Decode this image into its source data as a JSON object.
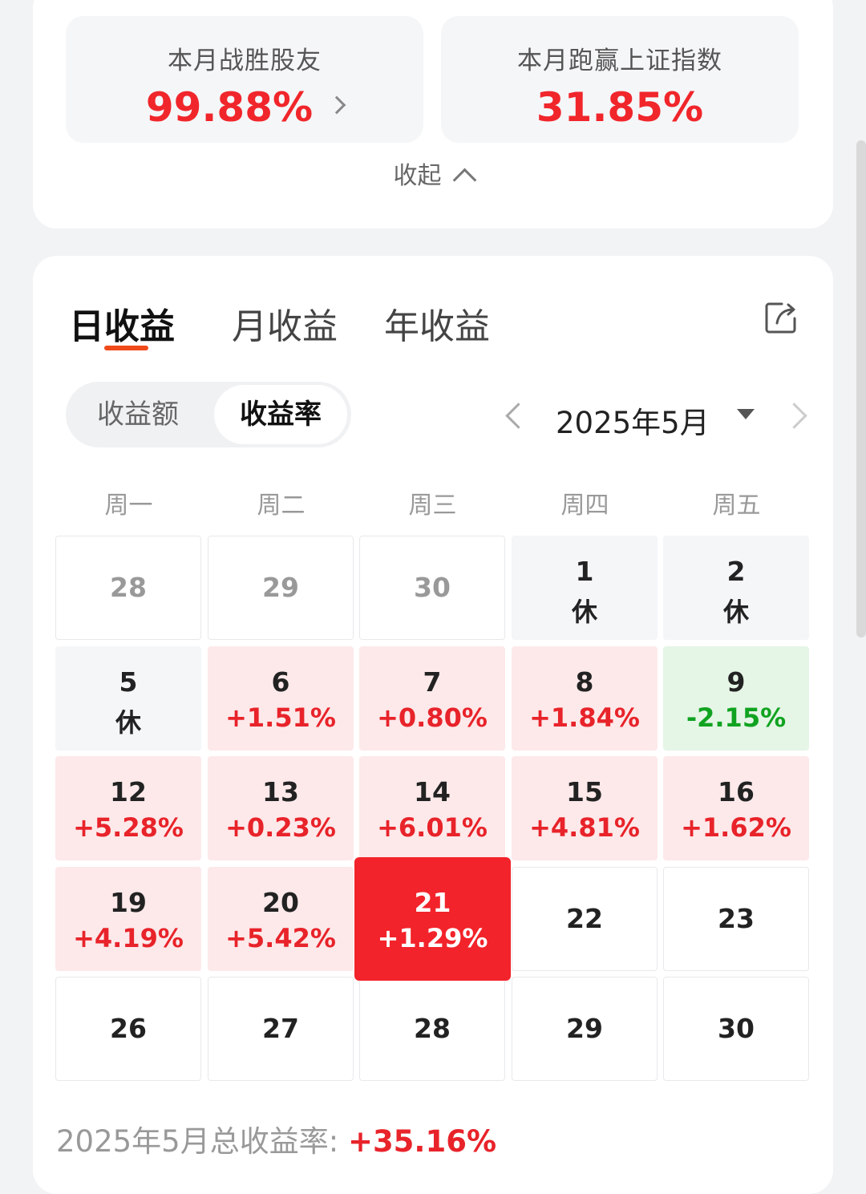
{
  "stats": {
    "beat_peers": {
      "label": "本月战胜股友",
      "value": "99.88%"
    },
    "beat_index": {
      "label": "本月跑赢上证指数",
      "value": "31.85%"
    },
    "collapse_label": "收起"
  },
  "tabs": [
    {
      "label": "日收益",
      "active": true
    },
    {
      "label": "月收益",
      "active": false
    },
    {
      "label": "年收益",
      "active": false
    }
  ],
  "segment": {
    "amount_label": "收益额",
    "rate_label": "收益率",
    "selected": "收益率"
  },
  "month_picker": {
    "label": "2025年5月"
  },
  "weekdays": [
    "周一",
    "周二",
    "周三",
    "周四",
    "周五"
  ],
  "calendar": [
    [
      {
        "day": "28",
        "value": "",
        "state": "other"
      },
      {
        "day": "29",
        "value": "",
        "state": "other"
      },
      {
        "day": "30",
        "value": "",
        "state": "other"
      },
      {
        "day": "1",
        "value": "休",
        "state": "holiday"
      },
      {
        "day": "2",
        "value": "休",
        "state": "holiday"
      }
    ],
    [
      {
        "day": "5",
        "value": "休",
        "state": "holiday"
      },
      {
        "day": "6",
        "value": "+1.51%",
        "state": "up"
      },
      {
        "day": "7",
        "value": "+0.80%",
        "state": "up"
      },
      {
        "day": "8",
        "value": "+1.84%",
        "state": "up"
      },
      {
        "day": "9",
        "value": "-2.15%",
        "state": "down"
      }
    ],
    [
      {
        "day": "12",
        "value": "+5.28%",
        "state": "up"
      },
      {
        "day": "13",
        "value": "+0.23%",
        "state": "up"
      },
      {
        "day": "14",
        "value": "+6.01%",
        "state": "up"
      },
      {
        "day": "15",
        "value": "+4.81%",
        "state": "up"
      },
      {
        "day": "16",
        "value": "+1.62%",
        "state": "up"
      }
    ],
    [
      {
        "day": "19",
        "value": "+4.19%",
        "state": "up"
      },
      {
        "day": "20",
        "value": "+5.42%",
        "state": "up"
      },
      {
        "day": "21",
        "value": "+1.29%",
        "state": "today"
      },
      {
        "day": "22",
        "value": "",
        "state": "future"
      },
      {
        "day": "23",
        "value": "",
        "state": "future"
      }
    ],
    [
      {
        "day": "26",
        "value": "",
        "state": "future"
      },
      {
        "day": "27",
        "value": "",
        "state": "future"
      },
      {
        "day": "28",
        "value": "",
        "state": "future"
      },
      {
        "day": "29",
        "value": "",
        "state": "future"
      },
      {
        "day": "30",
        "value": "",
        "state": "future"
      }
    ]
  ],
  "total": {
    "label": "2025年5月总收益率: ",
    "value": "+35.16%"
  },
  "colors": {
    "up": "#e8232a",
    "down": "#10a320",
    "accent": "#f04a1a"
  }
}
